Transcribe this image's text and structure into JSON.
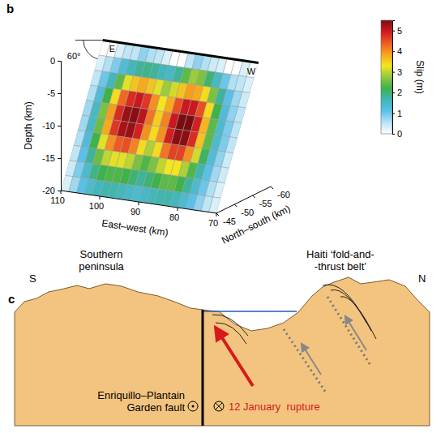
{
  "chart_data": {
    "type": "heatmap",
    "panel_label": "b",
    "xlabel": "East–west (km)",
    "ylabel": "North–south (km)",
    "zlabel": "Depth (km)",
    "xlim": [
      110,
      70
    ],
    "xticks": [
      110,
      100,
      90,
      80,
      70
    ],
    "ylim": [
      -45,
      -60
    ],
    "yticks": [
      -45,
      -50,
      -55,
      -60
    ],
    "zlim": [
      -20,
      0
    ],
    "zticks": [
      0,
      -5,
      -10,
      -15,
      -20
    ],
    "fault": {
      "top_ns": -56.6,
      "dip": {
        "value": 60,
        "label": "60°"
      },
      "east_label": "E",
      "west_label": "W"
    },
    "cells": [
      [
        0,
        0,
        0.3,
        0.5,
        0.5,
        0.8,
        0.6,
        0.5,
        0.3,
        0,
        0,
        0.5,
        0.8,
        0.6,
        0.4,
        0.3,
        0,
        0,
        0.3,
        0
      ],
      [
        0.3,
        0.6,
        0.9,
        1.3,
        1.6,
        1.8,
        1.9,
        1.8,
        1.6,
        1.5,
        1.8,
        2.4,
        2.8,
        2.6,
        2.0,
        1.5,
        1.0,
        0.6,
        0.5,
        0.3
      ],
      [
        0.5,
        1.0,
        1.6,
        2.4,
        3.2,
        3.6,
        3.8,
        3.6,
        3.2,
        2.8,
        3.1,
        3.6,
        3.9,
        3.8,
        3.4,
        2.6,
        1.8,
        1.1,
        0.7,
        0.4
      ],
      [
        0.6,
        1.3,
        2.2,
        3.4,
        4.3,
        4.8,
        5.0,
        4.7,
        4.0,
        3.3,
        3.8,
        4.5,
        5.0,
        5.0,
        4.5,
        3.4,
        2.2,
        1.3,
        0.8,
        0.5
      ],
      [
        0.7,
        1.5,
        2.6,
        3.9,
        4.8,
        5.3,
        5.4,
        5.1,
        4.2,
        3.5,
        4.1,
        5.0,
        5.5,
        5.5,
        4.9,
        3.7,
        2.4,
        1.4,
        0.9,
        0.5
      ],
      [
        0.7,
        1.5,
        2.5,
        3.8,
        4.7,
        5.2,
        5.3,
        4.9,
        4.0,
        3.4,
        4.0,
        4.9,
        5.4,
        5.4,
        4.8,
        3.6,
        2.4,
        1.4,
        0.9,
        0.5
      ],
      [
        0.6,
        1.3,
        2.2,
        3.2,
        4.0,
        4.4,
        4.5,
        4.1,
        3.4,
        2.9,
        3.4,
        4.2,
        4.6,
        4.6,
        4.0,
        3.1,
        2.1,
        1.3,
        0.8,
        0.4
      ],
      [
        0.5,
        1.1,
        1.8,
        2.5,
        3.0,
        3.2,
        3.2,
        3.0,
        2.6,
        2.3,
        2.6,
        3.0,
        3.3,
        3.3,
        2.9,
        2.3,
        1.7,
        1.1,
        0.7,
        0.4
      ],
      [
        0.4,
        0.9,
        1.4,
        1.9,
        2.2,
        2.3,
        2.3,
        2.2,
        2.0,
        1.8,
        2.0,
        2.2,
        2.4,
        2.4,
        2.2,
        1.8,
        1.4,
        1.0,
        0.6,
        0.3
      ],
      [
        0.3,
        0.7,
        1.1,
        1.4,
        1.6,
        1.7,
        1.7,
        1.6,
        1.5,
        1.4,
        1.5,
        1.6,
        1.7,
        1.7,
        1.6,
        1.4,
        1.1,
        0.8,
        0.5,
        0.3
      ]
    ],
    "colorbar": {
      "label": "Slip (m)",
      "range": [
        0,
        5.5
      ],
      "ticks": [
        0,
        1,
        2,
        3,
        4,
        5
      ]
    }
  },
  "diagram": {
    "panel_label": "c",
    "south": "S",
    "north": "N",
    "southern_peninsula": [
      "Southern",
      "peninsula"
    ],
    "fold_and_thrust_belt": [
      "Haiti ‘fold-and-",
      "-thrust belt’"
    ],
    "fault_name": [
      "Enriquillo–Plantain",
      "Garden fault"
    ],
    "rupture": "12 January  rupture"
  }
}
